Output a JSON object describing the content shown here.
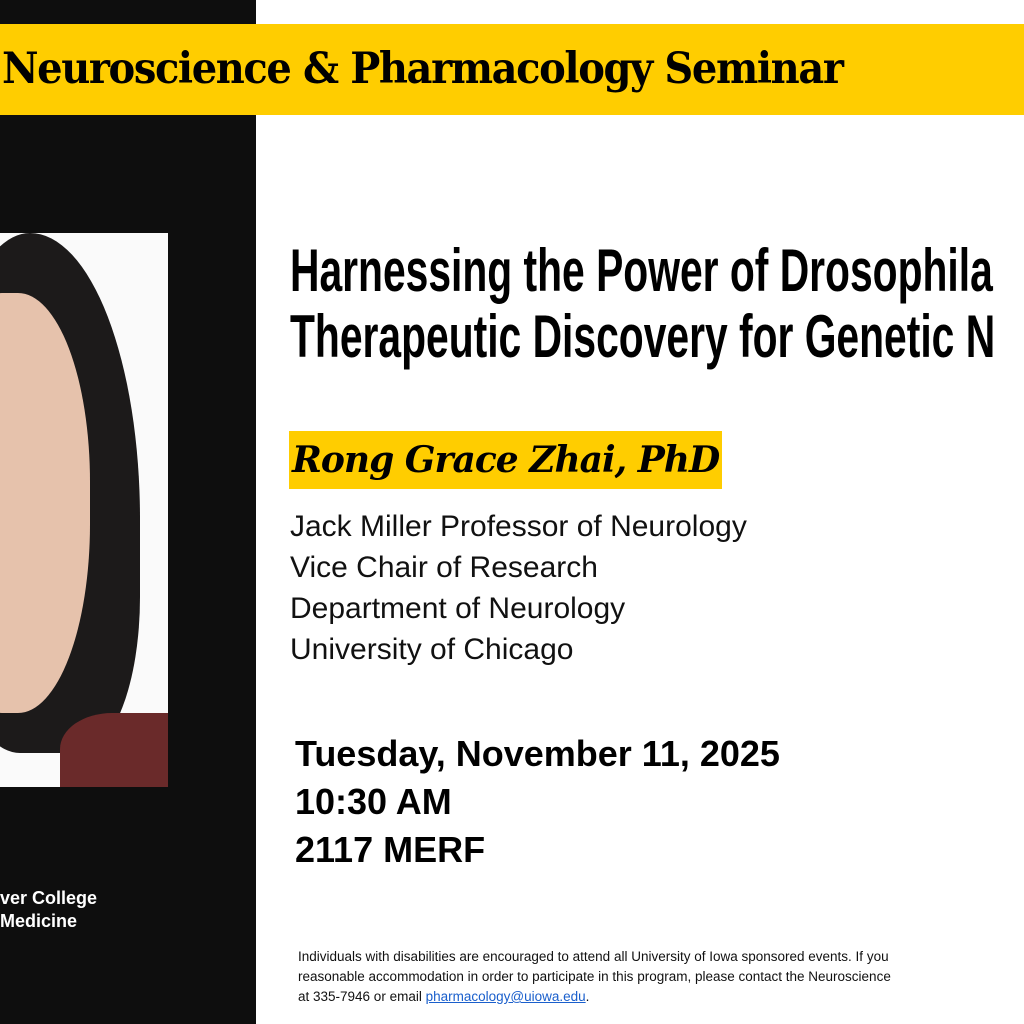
{
  "banner": {
    "title": "Neuroscience & Pharmacology Seminar"
  },
  "sidebar": {
    "college_line1": "ver College",
    "college_line2": "Medicine"
  },
  "talk": {
    "title_line1": "Harnessing the Power of Drosophila",
    "title_line2": "Therapeutic Discovery for Genetic N"
  },
  "speaker": {
    "name": "Rong Grace Zhai, PhD",
    "affiliations": [
      "Jack Miller Professor of Neurology",
      "Vice Chair of Research",
      "Department of Neurology",
      "University of Chicago"
    ]
  },
  "event": {
    "date": "Tuesday, November 11, 2025",
    "time": "10:30 AM",
    "location": "2117 MERF"
  },
  "disclaimer": {
    "line1": "Individuals with disabilities are encouraged to attend all University of Iowa sponsored events.  If you",
    "line2": "reasonable accommodation in order to participate in this program, please contact the Neuroscience",
    "line3_prefix": "at 335-7946 or email ",
    "email": "pharmacology@uiowa.edu",
    "line3_suffix": "."
  },
  "colors": {
    "accent": "#ffcd00",
    "sidebar": "#0e0e0e",
    "link": "#1a5fcc"
  }
}
